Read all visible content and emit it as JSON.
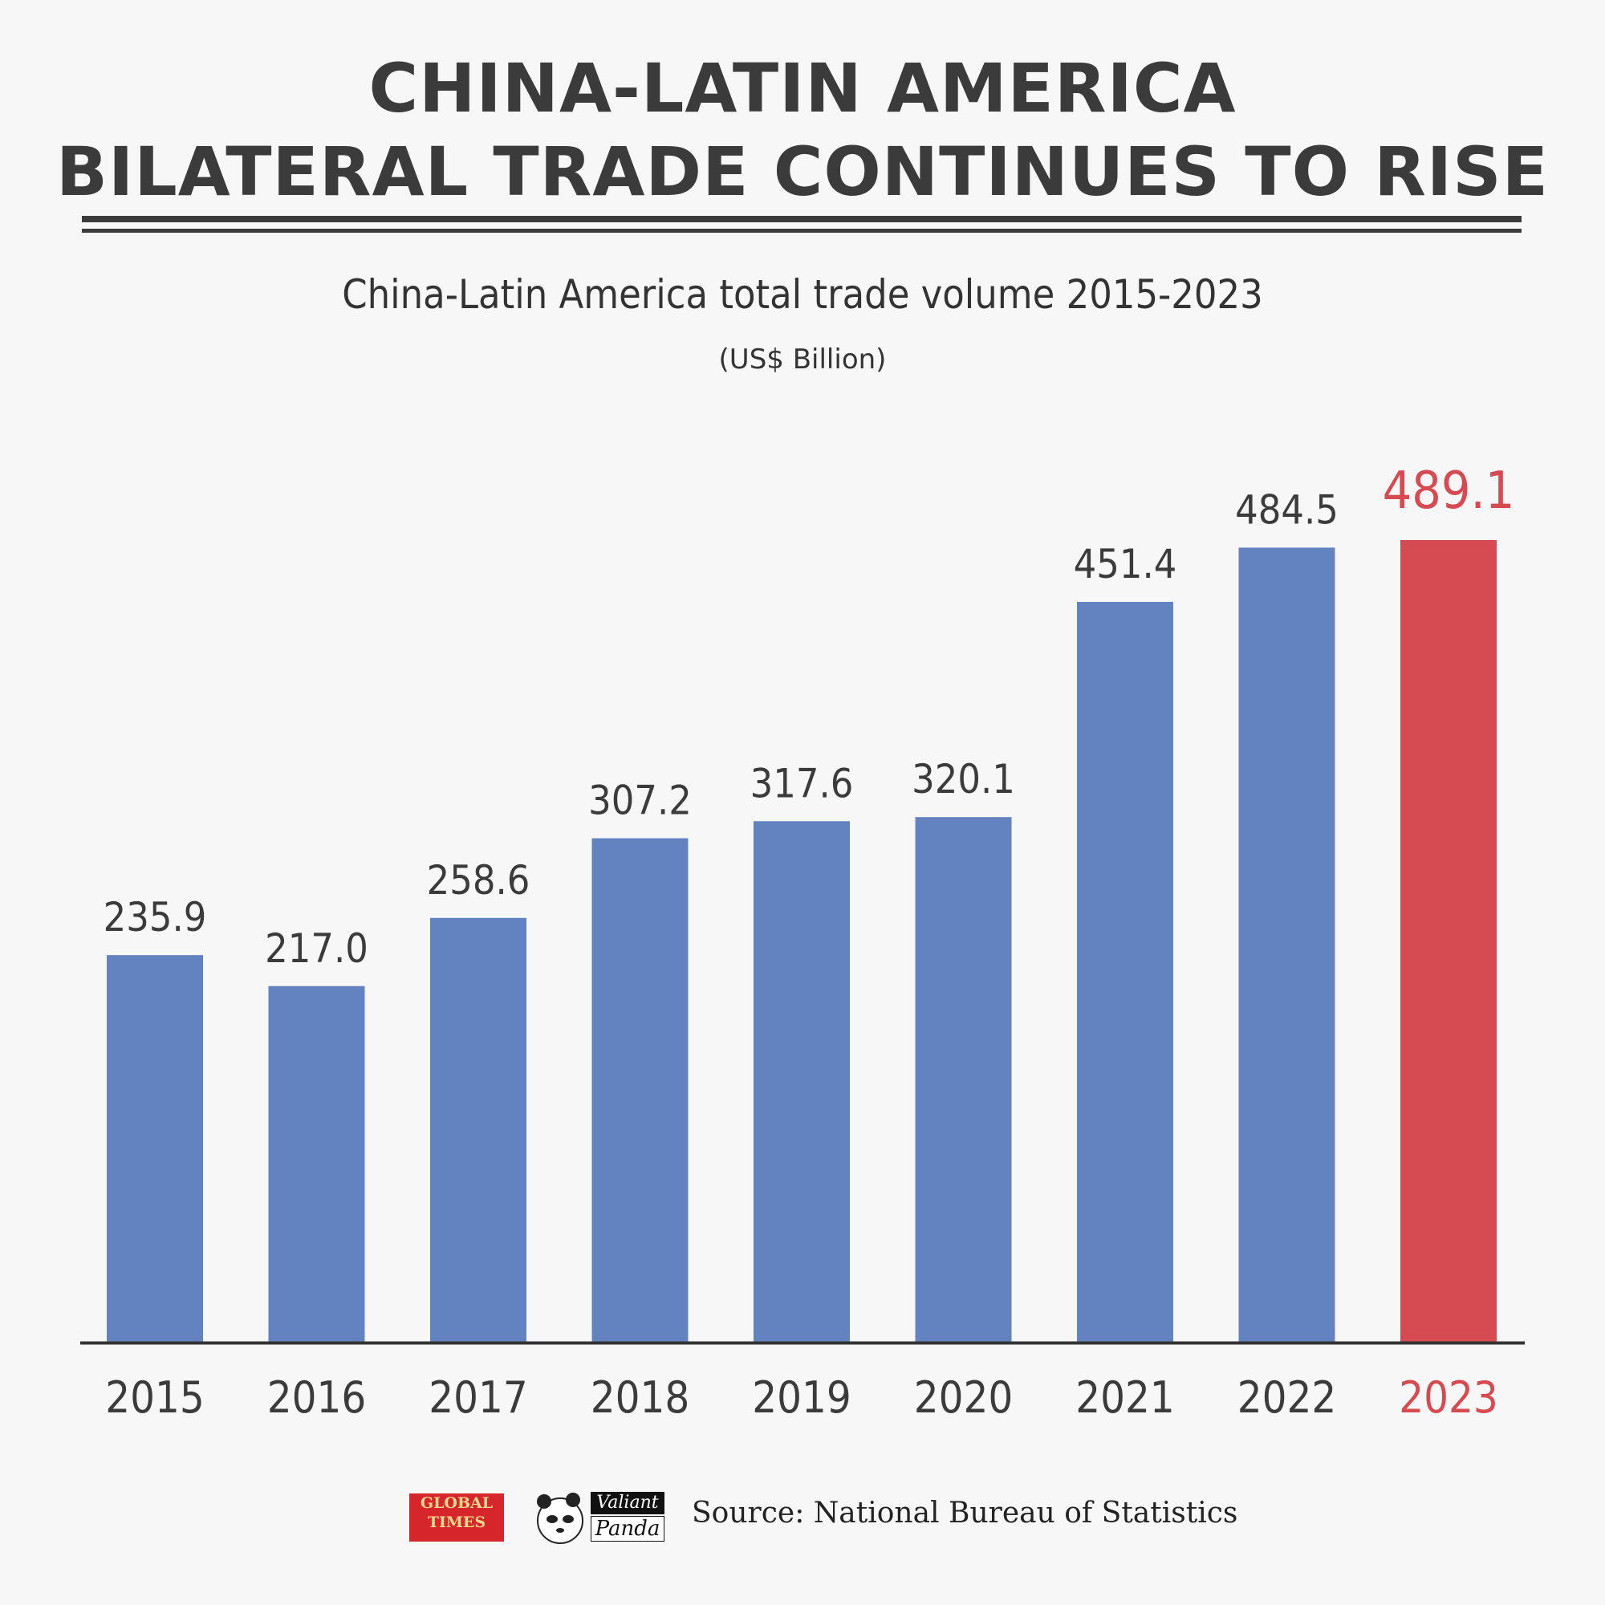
{
  "header": {
    "title_line1": "CHINA-LATIN AMERICA",
    "title_line2": "BILATERAL TRADE CONTINUES TO RISE",
    "subtitle": "China-Latin America total trade volume 2015-2023",
    "unit": "(US$ Billion)"
  },
  "colors": {
    "bar": "#6283bf",
    "highlight": "#d64b52",
    "text": "#3b3b3b",
    "axis": "#333333"
  },
  "chart_data": {
    "type": "bar",
    "title": "China-Latin America total trade volume 2015-2023",
    "ylabel": "(US$ Billion)",
    "categories": [
      "2015",
      "2016",
      "2017",
      "2018",
      "2019",
      "2020",
      "2021",
      "2022",
      "2023"
    ],
    "values": [
      235.9,
      217.0,
      258.6,
      307.2,
      317.6,
      320.1,
      451.4,
      484.5,
      489.1
    ],
    "value_labels": [
      "235.9",
      "217.0",
      "258.6",
      "307.2",
      "317.6",
      "320.1",
      "451.4",
      "484.5",
      "489.1"
    ],
    "highlight_category": "2023",
    "ylim": [
      0,
      489.1
    ],
    "grid": false,
    "legend": "none"
  },
  "footer": {
    "logo_gt_line1": "GLOBAL",
    "logo_gt_line2": "TIMES",
    "logo_vp_line1": "Valiant",
    "logo_vp_line2": "Panda",
    "logo_panda_icon": "panda-icon",
    "source": "Source: National Bureau of Statistics"
  }
}
